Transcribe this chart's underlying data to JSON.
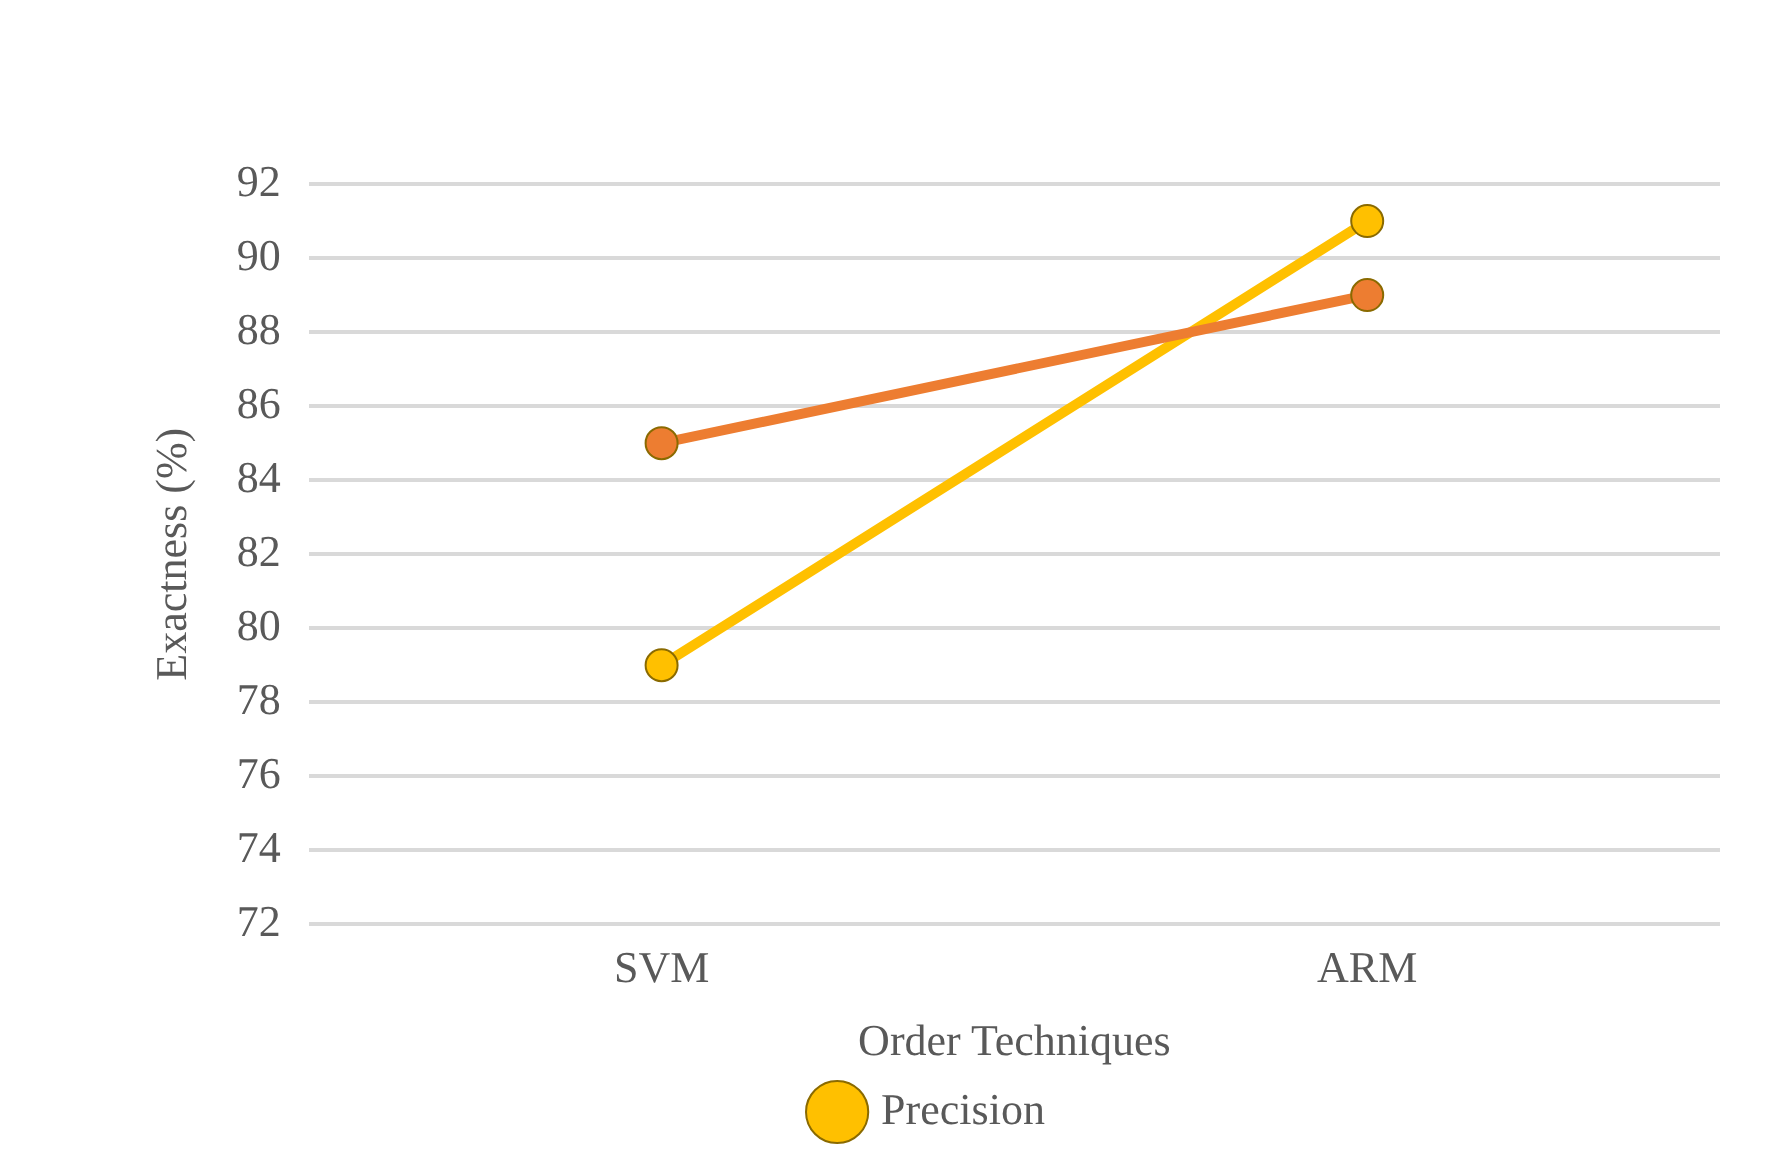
{
  "chart_data": {
    "type": "line",
    "xlabel": "Order Techniques",
    "ylabel": "Exactness (%)",
    "categories": [
      "SVM",
      "ARM"
    ],
    "series": [
      {
        "color": "#ed7d31",
        "values": [
          85,
          89
        ]
      },
      {
        "name": "Precision",
        "color": "#ffc000",
        "values": [
          79,
          91
        ]
      }
    ],
    "ylim": [
      72,
      92
    ],
    "yticks": [
      72,
      74,
      76,
      78,
      80,
      82,
      84,
      86,
      88,
      90,
      92
    ],
    "grid": "y",
    "legend": "bottom",
    "marker": "circle",
    "line_style": "solid"
  }
}
